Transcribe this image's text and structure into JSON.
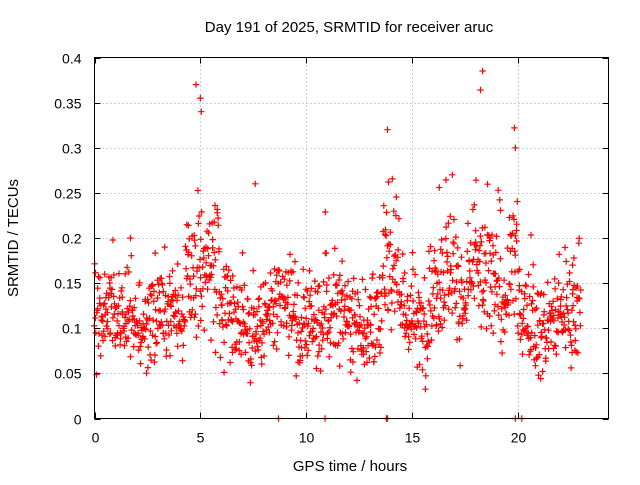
{
  "chart_data": {
    "type": "scatter",
    "title": "Day 191 of 2025, SRMTID for receiver aruc",
    "xlabel": "GPS time / hours",
    "ylabel": "SRMTID / TECUs",
    "xlim": [
      0,
      24.3
    ],
    "ylim": [
      0,
      0.4
    ],
    "xticks": [
      0,
      5,
      10,
      15,
      20
    ],
    "xtick_labels": [
      "0",
      "5",
      "10",
      "15",
      "20"
    ],
    "yticks": [
      0,
      0.05,
      0.1,
      0.15,
      0.2,
      0.25,
      0.3,
      0.35,
      0.4
    ],
    "ytick_labels": [
      "0",
      "0.05",
      "0.1",
      "0.15",
      "0.2",
      "0.25",
      "0.3",
      "0.35",
      "0.4"
    ],
    "grid": true,
    "marker": "+",
    "color": "#ff0000",
    "time_range_hours": [
      0,
      23.0
    ],
    "typical_range": [
      0.05,
      0.2
    ],
    "baseline_level": 0.11,
    "peaks": [
      {
        "x": 4.8,
        "y": 0.37
      },
      {
        "x": 5.0,
        "y": 0.355
      },
      {
        "x": 5.05,
        "y": 0.34
      },
      {
        "x": 7.6,
        "y": 0.26
      },
      {
        "x": 13.85,
        "y": 0.32
      },
      {
        "x": 13.9,
        "y": 0.262
      },
      {
        "x": 16.3,
        "y": 0.256
      },
      {
        "x": 18.35,
        "y": 0.385
      },
      {
        "x": 18.25,
        "y": 0.364
      },
      {
        "x": 19.85,
        "y": 0.322
      },
      {
        "x": 19.9,
        "y": 0.3
      },
      {
        "x": 22.6,
        "y": 0.17
      }
    ],
    "zero_points_x": [
      8.7,
      10.9,
      13.8,
      13.85,
      19.9,
      20.2
    ],
    "active_intervals": [
      {
        "start": 4.3,
        "end": 5.9,
        "level": 0.2
      },
      {
        "start": 13.6,
        "end": 14.4,
        "level": 0.19
      },
      {
        "start": 15.8,
        "end": 17.2,
        "level": 0.18
      },
      {
        "start": 17.6,
        "end": 19.2,
        "level": 0.2
      },
      {
        "start": 19.6,
        "end": 20.0,
        "level": 0.2
      }
    ],
    "point_count": 1300
  }
}
